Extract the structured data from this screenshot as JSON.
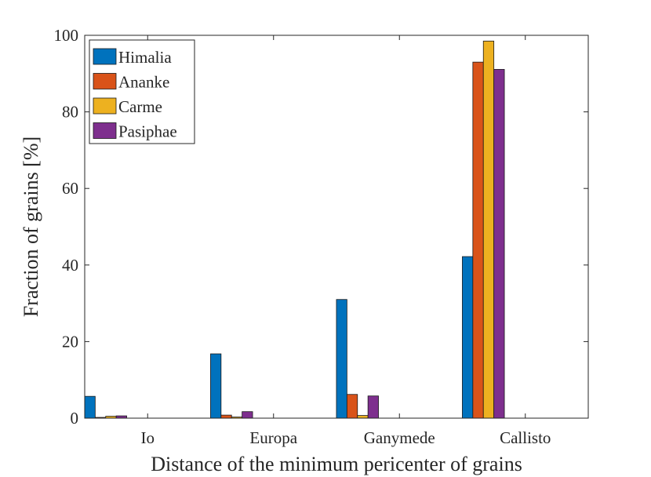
{
  "chart_data": {
    "type": "bar",
    "title": "",
    "xlabel": "Distance of the minimum pericenter of grains",
    "ylabel": "Fraction of grains [%]",
    "categories": [
      "Io",
      "Europa",
      "Ganymede",
      "Callisto"
    ],
    "ylim": [
      0,
      100
    ],
    "yticks": [
      0,
      20,
      40,
      60,
      80,
      100
    ],
    "grid": false,
    "legend_position": "top-left",
    "series": [
      {
        "name": "Himalia",
        "color": "#0072BD",
        "values": [
          5.7,
          16.8,
          31.0,
          42.2
        ]
      },
      {
        "name": "Ananke",
        "color": "#D95319",
        "values": [
          0.2,
          0.8,
          6.2,
          93.0
        ]
      },
      {
        "name": "Carme",
        "color": "#EDB120",
        "values": [
          0.5,
          0.3,
          0.7,
          98.5
        ]
      },
      {
        "name": "Pasiphae",
        "color": "#7E2F8E",
        "values": [
          0.6,
          1.7,
          5.8,
          91.1
        ]
      }
    ]
  }
}
